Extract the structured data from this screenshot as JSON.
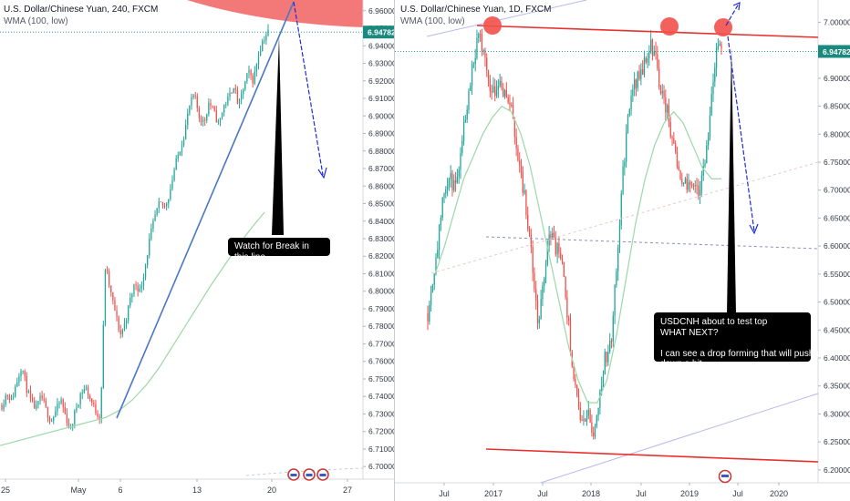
{
  "left_chart": {
    "title": "U.S. Dollar/Chinese Yuan, 240, FXCM",
    "indicator": "WMA (100, low)",
    "price_label": "6.94782",
    "annotation": "Watch for Break in this line",
    "colors": {
      "up": "#26a69a",
      "down": "#ef5350",
      "wma": "#9bd8a8",
      "trend": "#4a78c2",
      "arrow": "#1f2bd6",
      "red_zone": "#f26d6d",
      "price_line": "#29a89a",
      "price_tag": "#1b8a7e"
    }
  },
  "right_chart": {
    "title": "U.S. Dollar/Chinese Yuan, 1D, FXCM",
    "indicator": "WMA (100, low)",
    "price_label": "6.94782",
    "annotation": {
      "lines": [
        "USDCNH about to test top",
        "WHAT NEXT?",
        "",
        "I can see a drop forming that will push price",
        "down a bit"
      ]
    },
    "colors": {
      "up": "#26a69a",
      "down": "#ef5350",
      "wma": "#9bd8a8",
      "resistance": "#e8312f",
      "channel": "#b9b7ec",
      "arrow": "#1f2bd6",
      "circle": "#f2504b"
    }
  },
  "chart_data": [
    {
      "type": "candlestick",
      "title": "U.S. Dollar/Chinese Yuan, 240, FXCM",
      "series": [
        {
          "name": "U.S. Dollar/Chinese Yuan",
          "values_note": ""
        },
        {
          "name": "WMA (100, low)"
        }
      ],
      "x_tick_labels": [
        "25",
        "May",
        "6",
        "13",
        "20",
        "27"
      ],
      "y_tick_labels": [
        "6.70000",
        "6.71000",
        "6.72000",
        "6.73000",
        "6.74000",
        "6.75000",
        "6.76000",
        "6.77000",
        "6.78000",
        "6.79000",
        "6.80000",
        "6.81000",
        "6.82000",
        "6.83000",
        "6.84000",
        "6.85000",
        "6.86000",
        "6.87000",
        "6.88000",
        "6.89000",
        "6.90000",
        "6.91000",
        "6.92000",
        "6.93000",
        "6.94000",
        "6.95000",
        "6.96000"
      ],
      "ylim": [
        6.697,
        6.963
      ],
      "last_price": 6.94782,
      "close_path": [
        6.735,
        6.742,
        6.738,
        6.748,
        6.758,
        6.745,
        6.736,
        6.733,
        6.74,
        6.732,
        6.726,
        6.732,
        6.738,
        6.728,
        6.721,
        6.733,
        6.742,
        6.745,
        6.738,
        6.732,
        6.728,
        6.815,
        6.8,
        6.788,
        6.775,
        6.782,
        6.795,
        6.805,
        6.8,
        6.813,
        6.83,
        6.842,
        6.85,
        6.848,
        6.856,
        6.87,
        6.88,
        6.89,
        6.905,
        6.912,
        6.9,
        6.896,
        6.908,
        6.902,
        6.895,
        6.906,
        6.91,
        6.918,
        6.905,
        6.916,
        6.925,
        6.92,
        6.935,
        6.944,
        6.948
      ],
      "wma_path": [
        6.712,
        6.714,
        6.716,
        6.718,
        6.72,
        6.722,
        6.724,
        6.726,
        6.728,
        6.732,
        6.738,
        6.746,
        6.756,
        6.768,
        6.78,
        6.792,
        6.804,
        6.815,
        6.826,
        6.836,
        6.845
      ],
      "legend": "top-left"
    },
    {
      "type": "candlestick",
      "title": "U.S. Dollar/Chinese Yuan, 1D, FXCM",
      "series": [
        {
          "name": "U.S. Dollar/Chinese Yuan"
        },
        {
          "name": "WMA (100, low)"
        }
      ],
      "x_tick_labels": [
        "Jul",
        "2017",
        "Jul",
        "2018",
        "Jul",
        "2019",
        "Jul",
        "2020"
      ],
      "y_tick_labels": [
        "6.20000",
        "6.25000",
        "6.30000",
        "6.35000",
        "6.40000",
        "6.45000",
        "6.50000",
        "6.55000",
        "6.60000",
        "6.65000",
        "6.70000",
        "6.75000",
        "6.80000",
        "6.85000",
        "6.90000",
        "6.95000",
        "7.00000"
      ],
      "ylim": [
        6.19,
        7.03
      ],
      "last_price": 6.94782,
      "close_path": [
        6.48,
        6.55,
        6.62,
        6.7,
        6.72,
        6.7,
        6.78,
        6.85,
        6.92,
        6.97,
        6.96,
        6.89,
        6.88,
        6.9,
        6.87,
        6.85,
        6.78,
        6.72,
        6.65,
        6.55,
        6.45,
        6.55,
        6.63,
        6.6,
        6.58,
        6.5,
        6.4,
        6.32,
        6.28,
        6.3,
        6.26,
        6.34,
        6.4,
        6.42,
        6.55,
        6.7,
        6.82,
        6.88,
        6.9,
        6.92,
        6.96,
        6.95,
        6.88,
        6.85,
        6.8,
        6.75,
        6.72,
        6.7,
        6.72,
        6.7,
        6.74,
        6.85,
        6.94,
        6.95
      ],
      "wma_path": [
        6.55,
        6.6,
        6.66,
        6.72,
        6.76,
        6.8,
        6.83,
        6.85,
        6.84,
        6.8,
        6.74,
        6.66,
        6.58,
        6.5,
        6.42,
        6.36,
        6.32,
        6.32,
        6.36,
        6.44,
        6.54,
        6.64,
        6.72,
        6.78,
        6.82,
        6.84,
        6.82,
        6.78,
        6.74,
        6.72,
        6.72
      ],
      "legend": "top-left"
    }
  ]
}
